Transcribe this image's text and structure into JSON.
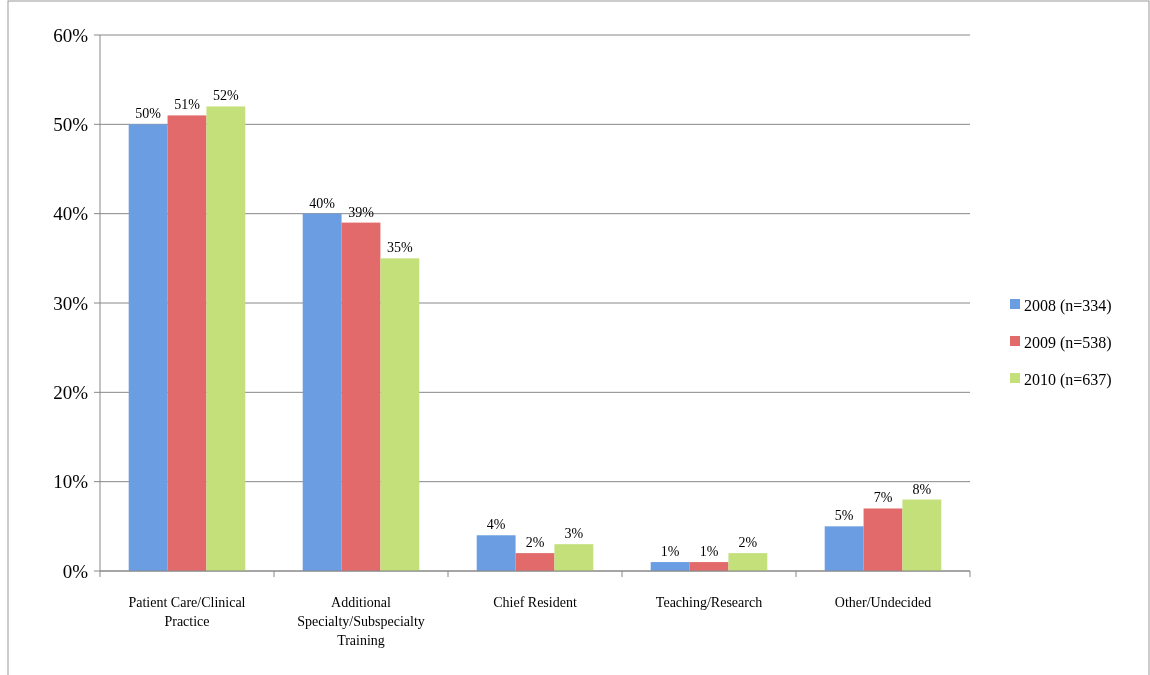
{
  "chart_data": {
    "type": "bar",
    "categories": [
      "Patient Care/Clinical Practice",
      "Additional Specialty/Subspecialty Training",
      "Chief Resident",
      "Teaching/Research",
      "Other/Undecided"
    ],
    "series": [
      {
        "name": "2008 (n=334)",
        "color": "#6b9de3",
        "values": [
          50,
          40,
          4,
          1,
          5
        ]
      },
      {
        "name": "2009 (n=538)",
        "color": "#e36a6a",
        "values": [
          51,
          39,
          2,
          1,
          7
        ]
      },
      {
        "name": "2010 (n=637)",
        "color": "#c3e07a",
        "values": [
          52,
          35,
          3,
          2,
          8
        ]
      }
    ],
    "ylim": [
      0,
      60
    ],
    "yticks": [
      {
        "value": 0,
        "label": "0%"
      },
      {
        "value": 10,
        "label": "10%"
      },
      {
        "value": 20,
        "label": "20%"
      },
      {
        "value": 30,
        "label": "30%"
      },
      {
        "value": 40,
        "label": "40%"
      },
      {
        "value": 50,
        "label": "50%"
      },
      {
        "value": 60,
        "label": "60%"
      }
    ],
    "value_labels": [
      [
        "50%",
        "40%",
        "4%",
        "1%",
        "5%"
      ],
      [
        "51%",
        "39%",
        "2%",
        "1%",
        "7%"
      ],
      [
        "52%",
        "35%",
        "3%",
        "2%",
        "8%"
      ]
    ],
    "grid": "y",
    "legend": "right"
  }
}
